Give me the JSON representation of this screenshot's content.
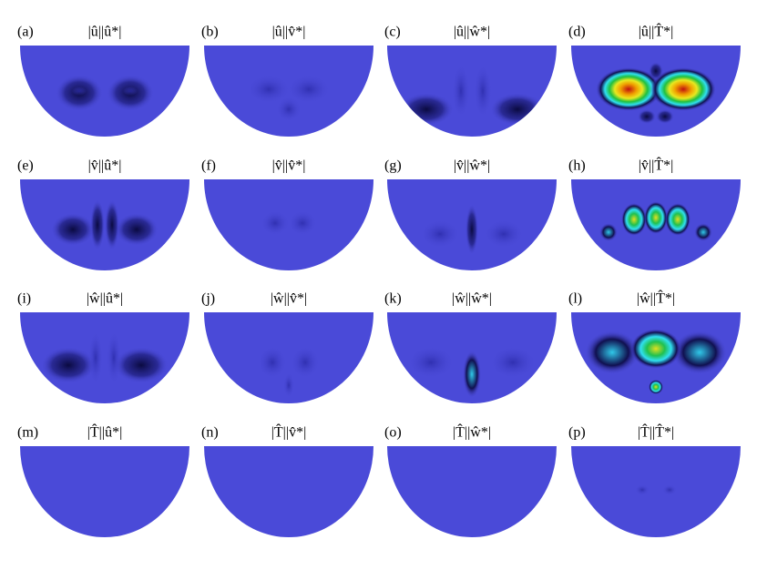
{
  "panels": [
    {
      "label": "(a)",
      "title": "|û||û*|"
    },
    {
      "label": "(b)",
      "title": "|û||v̂*|"
    },
    {
      "label": "(c)",
      "title": "|û||ŵ*|"
    },
    {
      "label": "(d)",
      "title": "|û||T̂*|"
    },
    {
      "label": "(e)",
      "title": "|v̂||û*|"
    },
    {
      "label": "(f)",
      "title": "|v̂||v̂*|"
    },
    {
      "label": "(g)",
      "title": "|v̂||ŵ*|"
    },
    {
      "label": "(h)",
      "title": "|v̂||T̂*|"
    },
    {
      "label": "(i)",
      "title": "|ŵ||û*|"
    },
    {
      "label": "(j)",
      "title": "|ŵ||v̂*|"
    },
    {
      "label": "(k)",
      "title": "|ŵ||ŵ*|"
    },
    {
      "label": "(l)",
      "title": "|ŵ||T̂*|"
    },
    {
      "label": "(m)",
      "title": "|T̂||û*|"
    },
    {
      "label": "(n)",
      "title": "|T̂||v̂*|"
    },
    {
      "label": "(o)",
      "title": "|T̂||ŵ*|"
    },
    {
      "label": "(p)",
      "title": "|T̂||T̂*|"
    }
  ]
}
